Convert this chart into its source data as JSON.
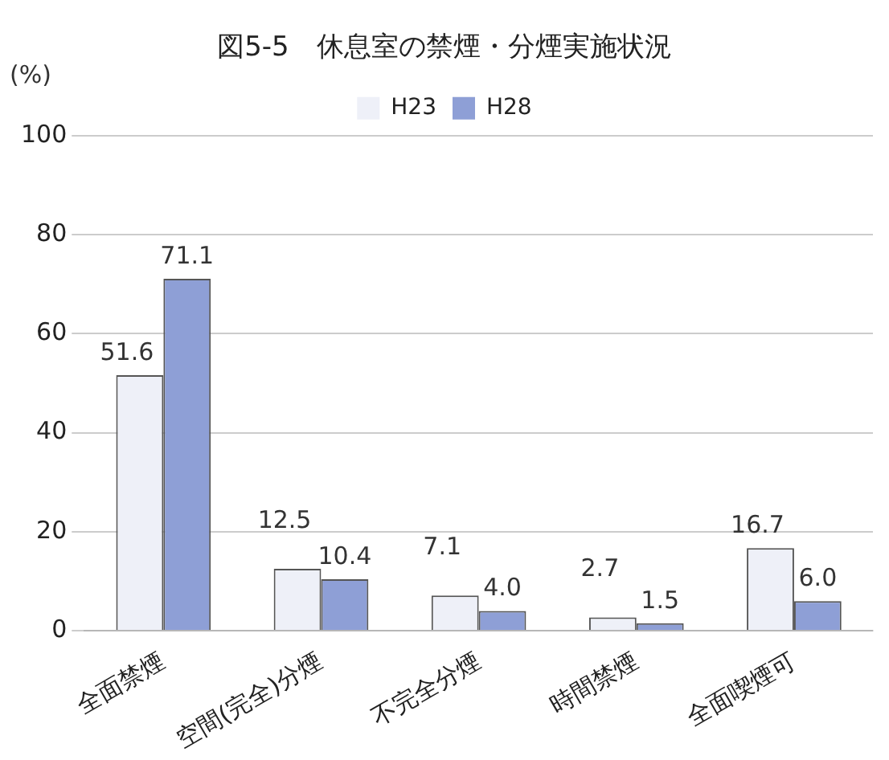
{
  "chart_data": {
    "type": "bar",
    "title": "図5-5　休息室の禁煙・分煙実施状況",
    "ylabel": "(%)",
    "categories": [
      "全面禁煙",
      "空間(完全)分煙",
      "不完全分煙",
      "時間禁煙",
      "全面喫煙可"
    ],
    "series": [
      {
        "name": "H23",
        "color": "#eef0f8",
        "values": [
          51.6,
          12.5,
          7.1,
          2.7,
          16.7
        ],
        "value_labels": [
          "51.6",
          "12.5",
          "7.1",
          "2.7",
          "16.7"
        ]
      },
      {
        "name": "H28",
        "color": "#8e9fd6",
        "values": [
          71.1,
          10.4,
          4.0,
          1.5,
          6.0
        ],
        "value_labels": [
          "71.1",
          "10.4",
          "4.0",
          "1.5",
          "6.0"
        ]
      }
    ],
    "ylim": [
      0,
      100
    ],
    "yticks": [
      0,
      20,
      40,
      60,
      80,
      100
    ],
    "grid": "y",
    "legend": "top"
  }
}
